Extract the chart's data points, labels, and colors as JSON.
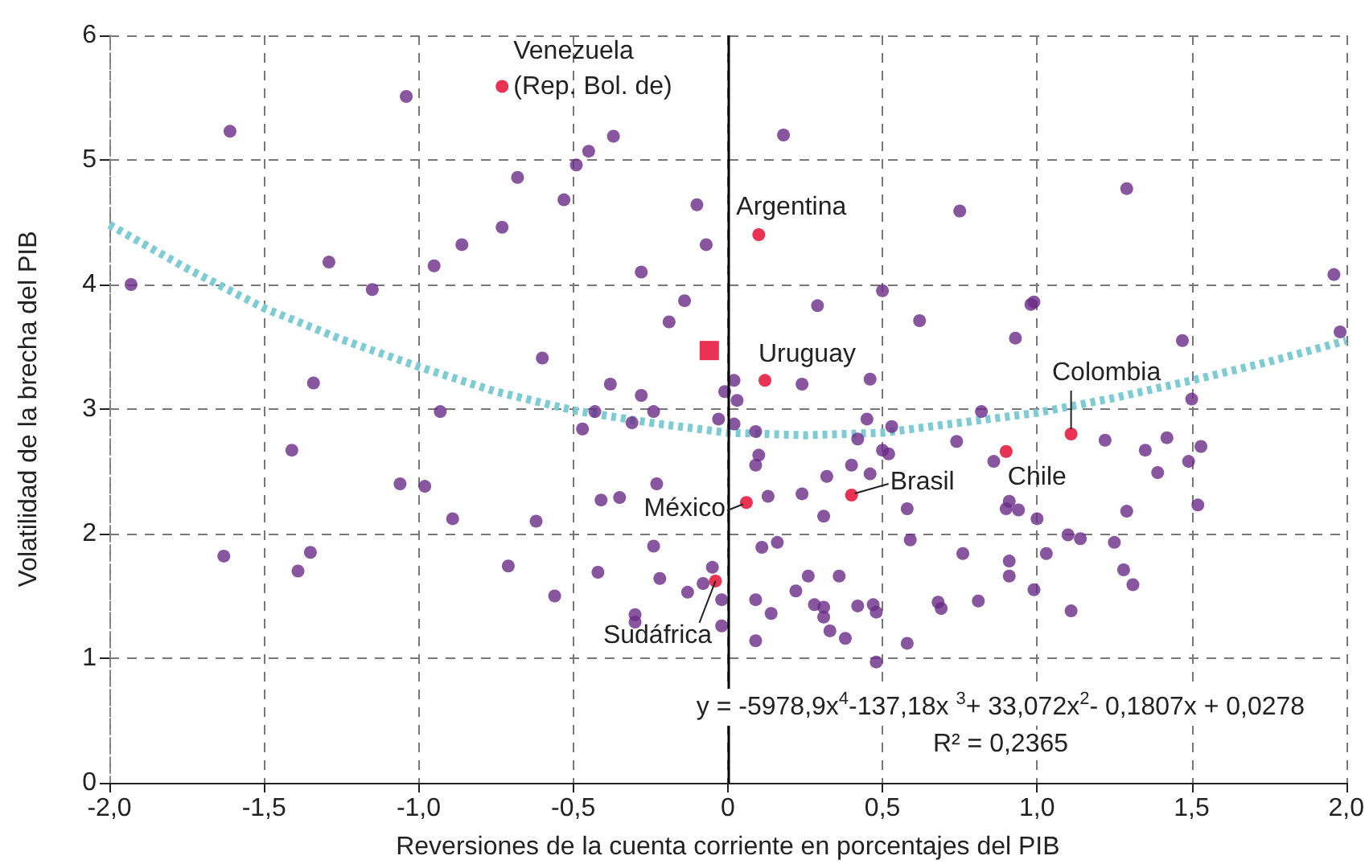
{
  "chart_data": {
    "type": "scatter",
    "xlabel": "Reversiones de la cuenta corriente en porcentajes del PIB",
    "ylabel": "Volatilidad de la brecha del PIB",
    "xlim": [
      -2,
      2
    ],
    "xticks": [
      {
        "value": -2,
        "label": "-2,0"
      },
      {
        "value": -1.5,
        "label": "-1,5"
      },
      {
        "value": -1,
        "label": "-1,0"
      },
      {
        "value": -0.5,
        "label": "-0,5"
      },
      {
        "value": 0,
        "label": "0"
      },
      {
        "value": 0.5,
        "label": "0,5"
      },
      {
        "value": 1,
        "label": "1,0"
      },
      {
        "value": 1.5,
        "label": "1,5"
      },
      {
        "value": 2,
        "label": "2,0"
      }
    ],
    "ylim": [
      0,
      6
    ],
    "yticks": [
      0,
      1,
      2,
      3,
      4,
      5,
      6
    ],
    "grid": true,
    "ref_lines": [
      {
        "axis": "x",
        "value": 0,
        "color": "#000000",
        "line_style": "solid"
      }
    ],
    "series": [
      {
        "type": "scatter",
        "color": "#6a2a87",
        "marker": "circle",
        "x": [
          -1.93,
          -1.61,
          -1.04,
          -0.37,
          -0.45,
          -0.49,
          -0.68,
          -0.53,
          -0.1,
          -0.07,
          -0.73,
          -0.86,
          -0.95,
          -1.29,
          -1.15,
          -0.28,
          -0.14,
          -0.19,
          -0.6,
          -1.34,
          -0.38,
          -0.28,
          -0.24,
          -0.43,
          -0.93,
          0.02,
          -0.01,
          0.03,
          0.18,
          0.75,
          1.29,
          1.96,
          1.98,
          0.5,
          0.29,
          0.62,
          0.98,
          0.99,
          0.93,
          1.47,
          1.5,
          0.24,
          0.46,
          0.82,
          -0.03,
          0.02,
          0.09,
          0.45,
          0.53,
          0.42,
          0.74,
          0.5,
          0.52,
          0.1,
          0.09,
          0.4,
          0.46,
          0.32,
          0.13,
          0.24,
          0.31,
          0.58,
          0.11,
          0.16,
          0.59,
          0.76,
          0.86,
          1.22,
          1.35,
          1.42,
          1.53,
          1.49,
          1.39,
          1.52,
          1.29,
          0.91,
          0.9,
          0.94,
          1.0,
          1.1,
          1.14,
          1.25,
          1.03,
          0.91,
          0.91,
          1.28,
          1.31,
          0.99,
          1.11,
          0.81,
          0.68,
          0.69,
          0.47,
          0.48,
          0.42,
          0.28,
          0.31,
          0.31,
          0.33,
          0.38,
          0.22,
          0.26,
          0.36,
          0.09,
          0.14,
          0.09,
          0.58,
          0.48,
          -0.02,
          -0.02,
          -0.05,
          -0.47,
          -0.31,
          -1.41,
          -1.06,
          -0.98,
          -0.89,
          -0.62,
          -0.23,
          -0.41,
          -0.35,
          -1.63,
          -1.35,
          -1.39,
          -0.71,
          -0.56,
          -0.42,
          -0.24,
          -0.22,
          -0.13,
          -0.08,
          -0.3,
          -0.3
        ],
        "values": [
          4.0,
          5.23,
          5.51,
          5.19,
          5.07,
          4.96,
          4.86,
          4.68,
          4.64,
          4.32,
          4.46,
          4.32,
          4.15,
          4.18,
          3.96,
          4.1,
          3.87,
          3.7,
          3.41,
          3.21,
          3.2,
          3.11,
          2.98,
          2.98,
          2.98,
          3.23,
          3.14,
          3.07,
          5.2,
          4.59,
          4.77,
          4.08,
          3.62,
          3.95,
          3.83,
          3.71,
          3.84,
          3.86,
          3.57,
          3.55,
          3.08,
          3.2,
          3.24,
          2.98,
          2.92,
          2.88,
          2.82,
          2.92,
          2.86,
          2.76,
          2.74,
          2.67,
          2.64,
          2.63,
          2.55,
          2.55,
          2.48,
          2.46,
          2.3,
          2.32,
          2.14,
          2.2,
          1.89,
          1.93,
          1.95,
          1.84,
          2.58,
          2.75,
          2.67,
          2.77,
          2.7,
          2.58,
          2.49,
          2.23,
          2.18,
          2.26,
          2.2,
          2.19,
          2.12,
          1.99,
          1.96,
          1.93,
          1.84,
          1.78,
          1.66,
          1.71,
          1.59,
          1.55,
          1.38,
          1.46,
          1.45,
          1.4,
          1.43,
          1.37,
          1.42,
          1.43,
          1.41,
          1.33,
          1.22,
          1.16,
          1.54,
          1.66,
          1.66,
          1.47,
          1.36,
          1.14,
          1.12,
          0.97,
          1.47,
          1.26,
          1.73,
          2.84,
          2.89,
          2.67,
          2.4,
          2.38,
          2.12,
          2.1,
          2.4,
          2.27,
          2.29,
          1.82,
          1.85,
          1.7,
          1.74,
          1.5,
          1.69,
          1.9,
          1.64,
          1.53,
          1.6,
          1.35,
          1.29
        ]
      },
      {
        "type": "scatter",
        "color": "#e4002b",
        "marker": "circle",
        "x": [
          -0.73,
          0.1,
          0.12,
          1.11,
          0.9,
          0.4,
          0.06,
          -0.04
        ],
        "values": [
          5.59,
          4.4,
          3.23,
          2.8,
          2.66,
          2.31,
          2.25,
          1.62
        ]
      },
      {
        "type": "scatter",
        "color": "#e4002b",
        "marker": "square",
        "x": [
          -0.06
        ],
        "values": [
          3.47
        ]
      },
      {
        "type": "line",
        "color": "#7ecbd4",
        "marker": "none",
        "line_style": "dotted",
        "x": [
          -2,
          -1.75,
          -1.5,
          -1.25,
          -1,
          -0.75,
          -0.5,
          -0.25,
          0,
          0.25,
          0.5,
          0.75,
          1,
          1.25,
          1.5,
          1.75,
          2
        ],
        "values": [
          4.48,
          4.13,
          3.81,
          3.56,
          3.34,
          3.14,
          2.99,
          2.89,
          2.81,
          2.79,
          2.81,
          2.89,
          2.97,
          3.09,
          3.23,
          3.38,
          3.55
        ]
      }
    ],
    "annotations": [
      {
        "text": "Venezuela\n(Rep. Bol. de)",
        "x": -0.73,
        "y": 5.59
      },
      {
        "text": "Argentina",
        "x": 0.1,
        "y": 4.4
      },
      {
        "text": "Uruguay",
        "x": 0.12,
        "y": 3.23
      },
      {
        "text": "Colombia",
        "x": 1.11,
        "y": 2.8
      },
      {
        "text": "Chile",
        "x": 0.9,
        "y": 2.66
      },
      {
        "text": "Brasil",
        "x": 0.4,
        "y": 2.31
      },
      {
        "text": "México",
        "x": 0.06,
        "y": 2.25
      },
      {
        "text": "Sudáfrica",
        "x": -0.04,
        "y": 1.62
      },
      "y = -5978,9x$^{4}$-137,18x $^{3}$+ 33,072x$^{2}$- 0,1807x + 0,0278",
      "R² = 0,2365"
    ]
  }
}
